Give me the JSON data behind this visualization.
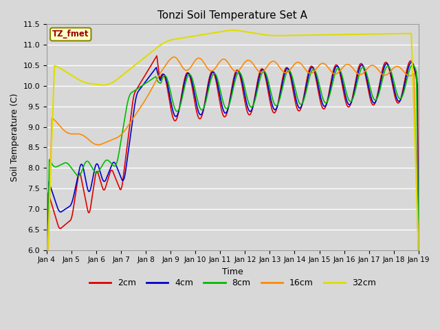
{
  "title": "Tonzi Soil Temperature Set A",
  "xlabel": "Time",
  "ylabel": "Soil Temperature (C)",
  "ylim": [
    6.0,
    11.5
  ],
  "xlim": [
    0,
    15
  ],
  "fig_w": 6.4,
  "fig_h": 4.8,
  "dpi": 100,
  "bg_color": "#d8d8d8",
  "series": {
    "2cm": {
      "color": "#dd0000",
      "lw": 1.2
    },
    "4cm": {
      "color": "#0000cc",
      "lw": 1.2
    },
    "8cm": {
      "color": "#00bb00",
      "lw": 1.2
    },
    "16cm": {
      "color": "#ff8800",
      "lw": 1.2
    },
    "32cm": {
      "color": "#dddd00",
      "lw": 1.5
    }
  },
  "annotation": {
    "text": "TZ_fmet",
    "color": "#990000",
    "bg": "#ffffcc",
    "border": "#888800"
  },
  "yticks": [
    6.0,
    6.5,
    7.0,
    7.5,
    8.0,
    8.5,
    9.0,
    9.5,
    10.0,
    10.5,
    11.0,
    11.5
  ],
  "xtick_days": [
    4,
    5,
    6,
    7,
    8,
    9,
    10,
    11,
    12,
    13,
    14,
    15,
    16,
    17,
    18,
    19
  ]
}
